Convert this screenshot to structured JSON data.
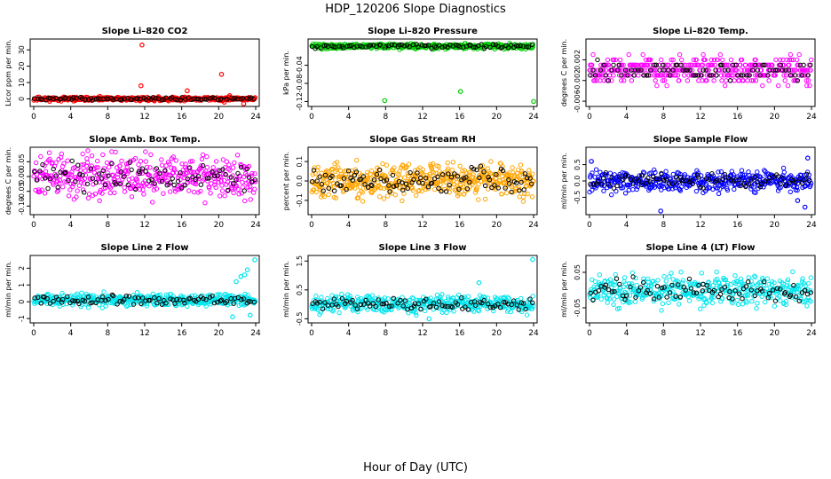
{
  "figure": {
    "title": "HDP_120206  Slope Diagnostics",
    "xlabel": "Hour of Day (UTC)"
  },
  "chart_data": [
    {
      "type": "scatter",
      "title": "Slope Li–820 CO2",
      "ylabel": "Licor ppm per min.",
      "color": "#ff0000",
      "x_ticks": [
        0,
        4,
        8,
        12,
        16,
        20,
        24
      ],
      "y_ticks": [
        "0",
        "10",
        "20",
        "30"
      ],
      "y_tick_values": [
        0,
        10,
        20,
        30
      ],
      "xlim": [
        0,
        24
      ],
      "ylim": [
        -3,
        35
      ],
      "n_points": 420,
      "base": 0,
      "spread": 0.8,
      "seed": 11,
      "outliers": [
        {
          "x": 11.7,
          "y": 33
        },
        {
          "x": 11.6,
          "y": 8
        },
        {
          "x": 20.3,
          "y": 15
        },
        {
          "x": 16.6,
          "y": 5
        },
        {
          "x": 20.6,
          "y": -2
        },
        {
          "x": 22.7,
          "y": -3
        },
        {
          "x": 21.2,
          "y": 2
        }
      ]
    },
    {
      "type": "scatter",
      "title": "Slope Li–820 Pressure",
      "ylabel": "kPa per min.",
      "color": "#00cc00",
      "x_ticks": [
        0,
        4,
        8,
        12,
        16,
        20,
        24
      ],
      "y_ticks": [
        "-0.04",
        "-0.08",
        "-0.12"
      ],
      "y_tick_values": [
        -0.04,
        -0.08,
        -0.12
      ],
      "xlim": [
        0,
        24
      ],
      "ylim": [
        -0.125,
        0.012
      ],
      "n_points": 420,
      "base": 0.002,
      "spread": 0.004,
      "seed": 22,
      "outliers": [
        {
          "x": 7.9,
          "y": -0.118
        },
        {
          "x": 16.1,
          "y": -0.098
        },
        {
          "x": 24,
          "y": -0.12
        },
        {
          "x": 7.8,
          "y": -0.002
        }
      ]
    },
    {
      "type": "scatter",
      "title": "Slope Li–820 Temp.",
      "ylabel": "degrees C per min.",
      "color": "#ff00ff",
      "x_ticks": [
        0,
        4,
        8,
        12,
        16,
        20,
        24
      ],
      "y_ticks": [
        "-0.006",
        "-0.002",
        "0.002"
      ],
      "y_tick_values": [
        -0.006,
        -0.002,
        0.002
      ],
      "xlim": [
        0,
        24
      ],
      "ylim": [
        -0.0065,
        0.0055
      ],
      "n_points": 420,
      "base": 0,
      "spread": 0.0018,
      "seed": 33,
      "quantize": 0.001,
      "outliers": []
    },
    {
      "type": "scatter",
      "title": "Slope Amb. Box Temp.",
      "ylabel": "degrees C per min.",
      "color": "#ff00ff",
      "x_ticks": [
        0,
        4,
        8,
        12,
        16,
        20,
        24
      ],
      "y_ticks": [
        "-0.10",
        "-0.05",
        "0.00",
        "0.05"
      ],
      "y_tick_values": [
        -0.1,
        -0.05,
        0,
        0.05
      ],
      "xlim": [
        0,
        24
      ],
      "ylim": [
        -0.12,
        0.09
      ],
      "n_points": 420,
      "base": 0,
      "spread": 0.05,
      "seed": 44,
      "outliers": []
    },
    {
      "type": "scatter",
      "title": "Slope Gas Stream RH",
      "ylabel": "percent per min.",
      "color": "#ffa500",
      "x_ticks": [
        0,
        4,
        8,
        12,
        16,
        20,
        24
      ],
      "y_ticks": [
        "-0.1",
        "0.0",
        "0.1"
      ],
      "y_tick_values": [
        -0.1,
        0,
        0.1
      ],
      "xlim": [
        0,
        24
      ],
      "ylim": [
        -0.16,
        0.16
      ],
      "n_points": 500,
      "base": 0,
      "spread": 0.06,
      "seed": 55,
      "outliers": []
    },
    {
      "type": "scatter",
      "title": "Slope Sample Flow",
      "ylabel": "ml/min per min.",
      "color": "#0000ff",
      "x_ticks": [
        0,
        4,
        8,
        12,
        16,
        20,
        24
      ],
      "y_ticks": [
        "-0.5",
        "0.0",
        "0.5"
      ],
      "y_tick_values": [
        -0.5,
        0,
        0.5
      ],
      "xlim": [
        0,
        24
      ],
      "ylim": [
        -0.95,
        0.95
      ],
      "n_points": 420,
      "base": 0,
      "spread": 0.22,
      "seed": 66,
      "outliers": [
        {
          "x": 7.7,
          "y": -0.92
        },
        {
          "x": 0.2,
          "y": 0.6
        },
        {
          "x": 23.6,
          "y": 0.7
        },
        {
          "x": 22.5,
          "y": -0.6
        },
        {
          "x": 23.3,
          "y": -0.8
        }
      ]
    },
    {
      "type": "scatter",
      "title": "Slope Line 2 Flow",
      "ylabel": "ml/min per min.",
      "color": "#00e5ee",
      "x_ticks": [
        0,
        4,
        8,
        12,
        16,
        20,
        24
      ],
      "y_ticks": [
        "-1",
        "0",
        "1",
        "2"
      ],
      "y_tick_values": [
        -1,
        0,
        1,
        2
      ],
      "xlim": [
        0,
        24
      ],
      "ylim": [
        -1.1,
        2.6
      ],
      "n_points": 420,
      "base": 0.1,
      "spread": 0.25,
      "seed": 77,
      "outliers": [
        {
          "x": 23.9,
          "y": 2.5
        },
        {
          "x": 23.1,
          "y": 1.9
        },
        {
          "x": 22.4,
          "y": 1.5
        },
        {
          "x": 21.9,
          "y": 1.2
        },
        {
          "x": 21.5,
          "y": -0.9
        },
        {
          "x": 23.4,
          "y": -0.8
        },
        {
          "x": 22.8,
          "y": 1.6
        }
      ]
    },
    {
      "type": "scatter",
      "title": "Slope Line 3 Flow",
      "ylabel": "ml/min per min.",
      "color": "#00e5ee",
      "x_ticks": [
        0,
        4,
        8,
        12,
        16,
        20,
        24
      ],
      "y_ticks": [
        "-0.5",
        "0.5",
        "1.5"
      ],
      "y_tick_values": [
        -0.5,
        0.5,
        1.5
      ],
      "xlim": [
        0,
        24
      ],
      "ylim": [
        -0.55,
        1.6
      ],
      "n_points": 420,
      "base": 0,
      "spread": 0.2,
      "seed": 88,
      "outliers": [
        {
          "x": 23.9,
          "y": 1.55
        },
        {
          "x": 12.7,
          "y": -0.5
        },
        {
          "x": 18.1,
          "y": 0.75
        }
      ]
    },
    {
      "type": "scatter",
      "title": "Slope Line 4 (LT) Flow",
      "ylabel": "ml/min per min.",
      "color": "#00e5ee",
      "x_ticks": [
        0,
        4,
        8,
        12,
        16,
        20,
        24
      ],
      "y_ticks": [
        "-0.05",
        "0.05"
      ],
      "y_tick_values": [
        -0.05,
        0.05
      ],
      "xlim": [
        0,
        24
      ],
      "ylim": [
        -0.085,
        0.09
      ],
      "n_points": 420,
      "base": 0,
      "spread": 0.03,
      "seed": 99,
      "outliers": []
    }
  ]
}
